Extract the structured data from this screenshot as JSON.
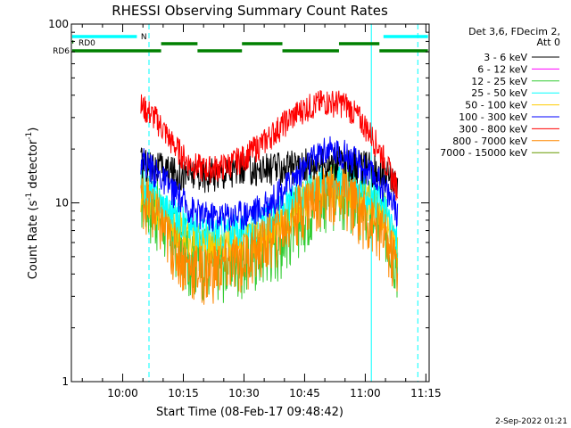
{
  "chart_data": {
    "type": "line",
    "title": "RHESSI Observing Summary Count Rates",
    "xlabel": "Start Time (08-Feb-17 09:48:42)",
    "ylabel": "Count Rate (s^-1 detector^-1)",
    "ylabel_parts": {
      "main": "Count Rate (s",
      "sup1": "-1",
      "mid": " detector",
      "sup2": "-1",
      "end": ")"
    },
    "yscale": "log",
    "ylim": [
      1,
      100
    ],
    "xlim_minutes": [
      -12.7,
      75.8
    ],
    "y_ticks": [
      {
        "value": 1,
        "label": "1"
      },
      {
        "value": 10,
        "label": "10"
      },
      {
        "value": 100,
        "label": "100"
      }
    ],
    "x_ticks": [
      {
        "minutes": 0,
        "label": "10:00"
      },
      {
        "minutes": 15,
        "label": "10:15"
      },
      {
        "minutes": 30,
        "label": "10:30"
      },
      {
        "minutes": 45,
        "label": "10:45"
      },
      {
        "minutes": 60,
        "label": "11:00"
      },
      {
        "minutes": 75,
        "label": "11:15"
      }
    ],
    "legend_header": [
      "Det 3,6, FDecim 2,",
      "Att 0"
    ],
    "series": [
      {
        "name": "3 - 6 keV",
        "color": "#000000",
        "t": [
          4.5,
          8,
          12,
          16,
          20,
          25,
          30,
          35,
          40,
          45,
          50,
          55,
          60,
          64,
          66,
          68
        ],
        "values": [
          17,
          16,
          15,
          14.5,
          14.5,
          15,
          15.5,
          15.5,
          16,
          16.5,
          17,
          17,
          16,
          15,
          14,
          13
        ]
      },
      {
        "name": "6 - 12 keV",
        "color": "#ff00ff",
        "t": [],
        "values": []
      },
      {
        "name": "12 - 25 keV",
        "color": "#33cc33",
        "t": [
          4.5,
          8,
          12,
          16,
          20,
          25,
          30,
          35,
          40,
          45,
          50,
          55,
          60,
          64,
          66,
          68
        ],
        "values": [
          12,
          9.5,
          7,
          5.5,
          5,
          5,
          5.2,
          5.8,
          7,
          9.5,
          12,
          12,
          10,
          8.5,
          7,
          5
        ]
      },
      {
        "name": "25 - 50 keV",
        "color": "#00ffff",
        "t": [
          4.5,
          8,
          12,
          16,
          20,
          25,
          30,
          35,
          40,
          45,
          50,
          55,
          60,
          64,
          66,
          68
        ],
        "values": [
          13,
          11,
          9,
          7.5,
          7,
          7,
          7.2,
          7.8,
          9.5,
          12,
          14,
          13.5,
          11.5,
          10,
          8,
          6
        ]
      },
      {
        "name": "50 - 100 keV",
        "color": "#ffcc00",
        "t": [
          4.5,
          8,
          12,
          16,
          20,
          25,
          30,
          35,
          40,
          45,
          50,
          55,
          60,
          64,
          66,
          68
        ],
        "values": [
          11,
          9.5,
          8,
          6.5,
          6,
          6,
          6.2,
          6.8,
          8.2,
          10.5,
          12.5,
          12,
          10.5,
          9,
          7,
          5.5
        ]
      },
      {
        "name": "100 - 300 keV",
        "color": "#0000ff",
        "t": [
          4.5,
          8,
          12,
          16,
          20,
          25,
          30,
          35,
          40,
          45,
          50,
          55,
          60,
          64,
          66,
          68
        ],
        "values": [
          18,
          15,
          12,
          9.5,
          8.5,
          8.5,
          8.8,
          9.5,
          12,
          16,
          20,
          19,
          15.5,
          13,
          11,
          8.5
        ]
      },
      {
        "name": "300 - 800 keV",
        "color": "#ff0000",
        "t": [
          4.5,
          8,
          12,
          16,
          20,
          25,
          30,
          35,
          40,
          45,
          50,
          55,
          60,
          64,
          66,
          68
        ],
        "values": [
          35,
          30,
          22,
          17,
          15.5,
          16,
          18,
          22,
          28,
          34,
          37,
          36,
          27,
          19,
          15,
          12
        ]
      },
      {
        "name": "800 - 7000 keV",
        "color": "#ff8800",
        "t": [
          4.5,
          8,
          12,
          16,
          20,
          25,
          30,
          35,
          40,
          45,
          50,
          55,
          60,
          64,
          66,
          68
        ],
        "values": [
          12,
          8.5,
          6,
          4.5,
          4.2,
          4.5,
          5,
          6,
          7.5,
          10,
          12,
          11.5,
          8.5,
          7,
          5.5,
          4.5
        ]
      },
      {
        "name": "7000 - 15000 keV",
        "color": "#669900",
        "t": [],
        "values": []
      }
    ],
    "status_bars": [
      {
        "name": "N",
        "color": "#00ffff",
        "segments": [
          [
            -12.5,
            3.5
          ],
          [
            64.5,
            75.5
          ]
        ],
        "label": "N"
      },
      {
        "name": "RD0",
        "color": "#008000",
        "segments": [
          [
            -12.5,
            -12.2
          ]
        ],
        "label": "RD0"
      },
      {
        "name": "RD6",
        "color": "#008000",
        "segments": [
          [
            -12.5,
            9.5
          ],
          [
            9.5,
            18.5
          ],
          [
            18.5,
            29.5
          ],
          [
            29.5,
            39.5
          ],
          [
            39.5,
            53.5
          ],
          [
            53.5,
            63.5
          ],
          [
            63.5,
            75.5
          ]
        ],
        "label": "RD6"
      }
    ],
    "night_boundaries_minutes": [
      {
        "t": -12.7,
        "style": "solid"
      },
      {
        "t": 6.5,
        "style": "dashed"
      },
      {
        "t": 61.5,
        "style": "solid"
      },
      {
        "t": 73,
        "style": "dashed"
      }
    ]
  },
  "timestamp": "2-Sep-2022 01:21"
}
